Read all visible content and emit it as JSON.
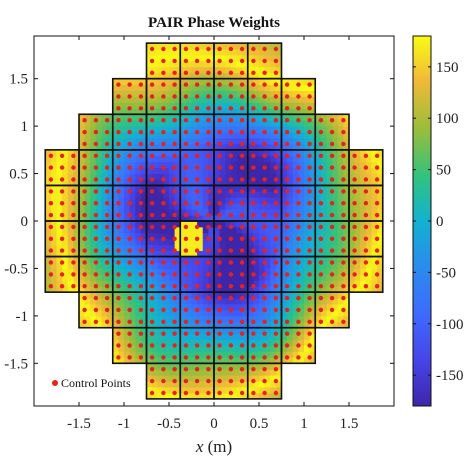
{
  "chart_data": {
    "type": "heatmap",
    "title": "PAIR Phase Weights",
    "xlabel": "x (m)",
    "xlabel_var": "x",
    "xlabel_unit": "(m)",
    "ylabel": "",
    "xlim": [
      -2.0,
      2.0
    ],
    "ylim": [
      -1.95,
      1.95
    ],
    "xticks": [
      -1.5,
      -1,
      -0.5,
      0,
      0.5,
      1,
      1.5
    ],
    "xtick_labels": [
      "-1.5",
      "-1",
      "-0.5",
      "0",
      "0.5",
      "1",
      "1.5"
    ],
    "yticks": [
      1.5,
      1,
      0.5,
      0,
      -0.5,
      -1,
      -1.5
    ],
    "ytick_labels": [
      "1.5",
      "1",
      "0.5",
      "0",
      "-0.5",
      "-1",
      "-1.5"
    ],
    "colorbar": {
      "range": [
        -180,
        180
      ],
      "ticks": [
        150,
        100,
        50,
        0,
        -50,
        -100,
        -150
      ],
      "tick_labels": [
        "150",
        "100",
        "50",
        "0",
        "-50",
        "-100",
        "-150"
      ],
      "colormap": "parula"
    },
    "legend": {
      "entries": [
        "Control Points"
      ],
      "placement": "bottom-left",
      "marker_color": "#e8211e"
    },
    "tile_size": 0.375,
    "aperture_rows": [
      {
        "y_range": [
          1.5,
          1.875
        ],
        "x_range": [
          -0.75,
          0.75
        ]
      },
      {
        "y_range": [
          1.125,
          1.5
        ],
        "x_range": [
          -1.125,
          1.125
        ]
      },
      {
        "y_range": [
          0.75,
          1.125
        ],
        "x_range": [
          -1.5,
          1.5
        ]
      },
      {
        "y_range": [
          0.375,
          0.75
        ],
        "x_range": [
          -1.875,
          1.875
        ]
      },
      {
        "y_range": [
          0.0,
          0.375
        ],
        "x_range": [
          -1.875,
          1.875
        ]
      },
      {
        "y_range": [
          -0.375,
          0.0
        ],
        "x_range": [
          -1.875,
          1.875
        ]
      },
      {
        "y_range": [
          -0.75,
          -0.375
        ],
        "x_range": [
          -1.875,
          1.875
        ]
      },
      {
        "y_range": [
          -1.125,
          -0.75
        ],
        "x_range": [
          -1.5,
          1.5
        ]
      },
      {
        "y_range": [
          -1.5,
          -1.125
        ],
        "x_range": [
          -1.125,
          1.125
        ]
      },
      {
        "y_range": [
          -1.875,
          -1.5
        ],
        "x_range": [
          -0.75,
          0.75
        ]
      }
    ],
    "control_points_per_tile": 3
  }
}
